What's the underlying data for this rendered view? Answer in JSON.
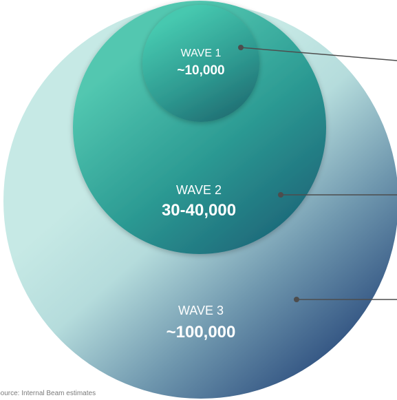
{
  "waves": [
    {
      "name": "WAVE 1",
      "count": "~10,000"
    },
    {
      "name": "WAVE 2",
      "count": "30-40,000"
    },
    {
      "name": "WAVE 3",
      "count": "~100,000"
    }
  ],
  "source": "Source: Internal Beam estimates",
  "colors": {
    "outer_light": "#c5e8e4",
    "outer_dark": "#2c4f7f",
    "middle_light": "#4fc4ad",
    "middle_dark": "#1d6f79",
    "inner_light": "#47c9b0",
    "inner_dark": "#206e72",
    "connector": "#4d4d4d"
  }
}
